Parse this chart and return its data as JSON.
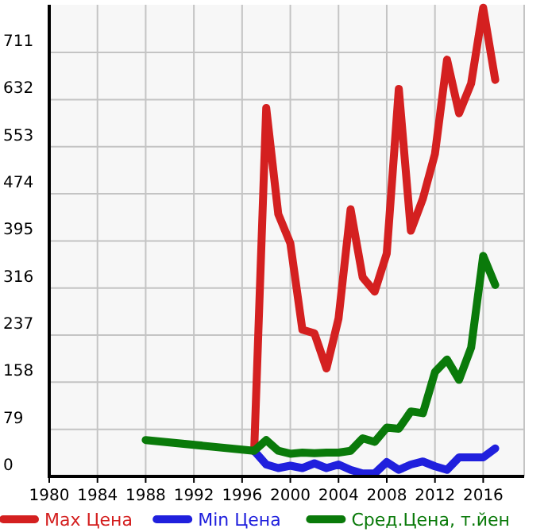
{
  "chart_data": {
    "type": "line",
    "xlim": [
      1980,
      2019.4
    ],
    "xticks": [
      1980,
      1984,
      1988,
      1992,
      1996,
      2000,
      2004,
      2008,
      2012,
      2016
    ],
    "ylim": [
      0,
      791
    ],
    "yticks": [
      0,
      79,
      158,
      237,
      316,
      395,
      474,
      553,
      632,
      711
    ],
    "grid": true,
    "legend": "bottom",
    "marker": "none",
    "line_style": "solid",
    "series": [
      {
        "name": "Max Цена",
        "color": "#d42020",
        "x": [
          1997,
          1998,
          1999,
          2000,
          2001,
          2002,
          2003,
          2004,
          2005,
          2006,
          2007,
          2008,
          2009,
          2010,
          2011,
          2012,
          2013,
          2014,
          2015,
          2016,
          2017
        ],
        "values": [
          42,
          618,
          440,
          391,
          246,
          240,
          181,
          265,
          448,
          334,
          310,
          374,
          650,
          412,
          466,
          541,
          699,
          609,
          659,
          786,
          665
        ]
      },
      {
        "name": "Min Цена",
        "color": "#2020dd",
        "x": [
          1997,
          1998,
          1999,
          2000,
          2001,
          2002,
          2003,
          2004,
          2005,
          2006,
          2007,
          2008,
          2009,
          2010,
          2011,
          2012,
          2013,
          2014,
          2015,
          2016,
          2017
        ],
        "values": [
          43,
          20,
          14,
          18,
          14,
          22,
          14,
          20,
          11,
          5,
          5,
          24,
          11,
          20,
          25,
          17,
          11,
          32,
          32,
          32,
          47
        ]
      },
      {
        "name": "Сред.Цена, т.йен",
        "color": "#0a7a0a",
        "x": [
          1988,
          1997,
          1998,
          1999,
          2000,
          2001,
          2002,
          2003,
          2004,
          2005,
          2006,
          2007,
          2008,
          2009,
          2010,
          2011,
          2012,
          2013,
          2014,
          2015,
          2016,
          2017
        ],
        "values": [
          61,
          43,
          61,
          43,
          38,
          40,
          39,
          40,
          40,
          43,
          64,
          58,
          82,
          80,
          109,
          106,
          175,
          196,
          162,
          216,
          370,
          321
        ]
      }
    ]
  }
}
